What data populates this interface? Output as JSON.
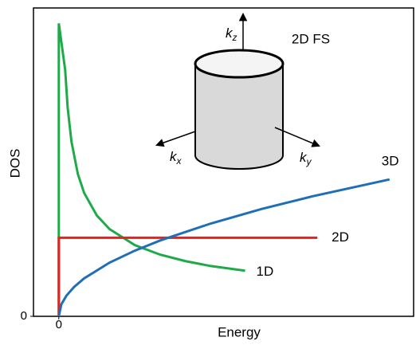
{
  "chart_data": {
    "type": "line",
    "x_label": "Energy",
    "y_label": "DOS",
    "xlim": [
      -1,
      14
    ],
    "ylim": [
      0,
      10
    ],
    "xticks": [
      0
    ],
    "yticks": [
      0
    ],
    "series": [
      {
        "name": "1D",
        "color": "#1faa4a",
        "x": [
          0,
          0,
          0.25,
          0.35,
          0.5,
          0.75,
          1,
          1.5,
          2,
          3,
          4,
          5,
          6,
          7.35
        ],
        "values": [
          0,
          9.5,
          8,
          6.76,
          5.66,
          4.62,
          4,
          3.27,
          2.83,
          2.31,
          2,
          1.79,
          1.63,
          1.48
        ]
      },
      {
        "name": "2D",
        "color": "#e8211f",
        "x": [
          0,
          0,
          10.2
        ],
        "values": [
          0,
          2.55,
          2.55
        ]
      },
      {
        "name": "3D",
        "color": "#1f6fb8",
        "x": [
          0,
          0.1,
          0.3,
          0.6,
          1,
          2,
          3,
          4,
          6,
          8,
          10,
          13.05
        ],
        "values": [
          0,
          0.39,
          0.67,
          0.95,
          1.23,
          1.74,
          2.13,
          2.46,
          3.01,
          3.48,
          3.89,
          4.44
        ]
      }
    ],
    "inset": {
      "title": "2D FS",
      "axis_labels": [
        "kx",
        "ky",
        "kz"
      ]
    }
  }
}
